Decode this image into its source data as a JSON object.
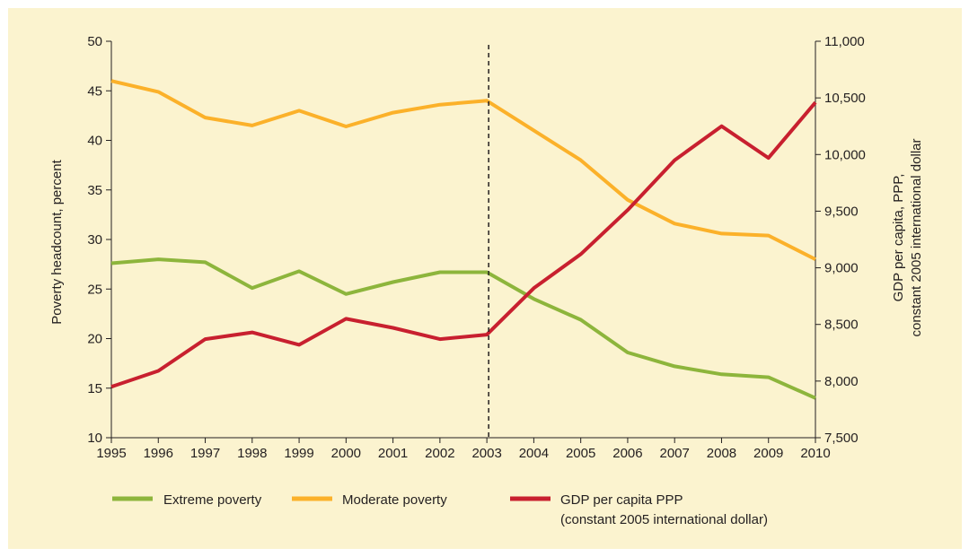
{
  "chart_data": {
    "type": "line",
    "x": [
      "1995",
      "1996",
      "1997",
      "1998",
      "1999",
      "2000",
      "2001",
      "2002",
      "2003",
      "2004",
      "2005",
      "2006",
      "2007",
      "2008",
      "2009",
      "2010"
    ],
    "ylabel_left": "Poverty headcount, percent",
    "ylabel_right": [
      "GDP per capita, PPP,",
      "constant 2005 international dollar"
    ],
    "ylim_left": [
      10,
      50
    ],
    "ylim_right": [
      7500,
      11000
    ],
    "left_ticks": [
      "10",
      "15",
      "20",
      "25",
      "30",
      "35",
      "40",
      "45",
      "50"
    ],
    "right_ticks": [
      "7,500",
      "8,000",
      "8,500",
      "9,000",
      "9,500",
      "10,000",
      "10,500",
      "11,000"
    ],
    "reference_line_year": "2003",
    "grid": false,
    "legend_position": "bottom",
    "series": [
      {
        "name": "Extreme poverty",
        "axis": "left",
        "color": "#8db53c",
        "values": [
          27.6,
          28.0,
          27.7,
          25.1,
          26.8,
          24.5,
          25.7,
          26.7,
          26.7,
          24.0,
          21.9,
          18.6,
          17.2,
          16.4,
          16.1,
          14.0
        ]
      },
      {
        "name": "Moderate poverty",
        "axis": "left",
        "color": "#fbb12a",
        "values": [
          46.0,
          44.9,
          42.3,
          41.5,
          43.0,
          41.4,
          42.8,
          43.6,
          44.0,
          41.0,
          38.0,
          34.0,
          31.6,
          30.6,
          30.4,
          28.0
        ]
      },
      {
        "name": "GDP per capita PPP",
        "name_line2": "(constant 2005 international dollar)",
        "axis": "right",
        "color": "#c8202f",
        "values": [
          7950,
          8090,
          8370,
          8430,
          8320,
          8550,
          8470,
          8370,
          8410,
          8820,
          9120,
          9510,
          9950,
          10250,
          9970,
          10460
        ]
      }
    ]
  }
}
